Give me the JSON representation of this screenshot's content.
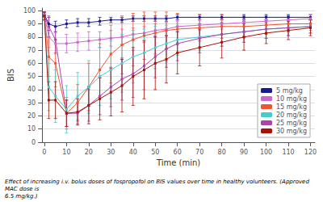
{
  "chart_data": {
    "type": "line",
    "title": "",
    "xlabel": "Time (min)",
    "ylabel": "BIS",
    "caption": "Effect of increasing i.v. bolus doses of fospropofol on BIS values over time in healthy volunteers. (Approved MAC dose is\n6.5 mg/kg.)",
    "xlim": [
      -1,
      122
    ],
    "ylim": [
      0,
      102
    ],
    "xticks": [
      0,
      10,
      20,
      30,
      40,
      50,
      60,
      70,
      80,
      90,
      100,
      110,
      120
    ],
    "yticks": [
      0,
      10,
      20,
      30,
      40,
      50,
      60,
      70,
      80,
      90,
      100
    ],
    "grid": true,
    "legend": "lower right",
    "marker": "square",
    "line_style": "solid",
    "series": [
      {
        "name": "5 mg/kg",
        "color": "#1a1a8c",
        "x": [
          0,
          2,
          5,
          10,
          15,
          20,
          25,
          30,
          35,
          40,
          45,
          50,
          55,
          60,
          70,
          80,
          90,
          100,
          110,
          120
        ],
        "values": [
          97,
          90,
          88,
          90,
          91,
          91,
          92,
          93,
          93,
          94,
          94,
          94,
          94,
          95,
          95,
          95,
          95,
          95,
          95,
          95
        ],
        "err": [
          2,
          5,
          4,
          3,
          3,
          3,
          3,
          2,
          2,
          2,
          2,
          2,
          2,
          2,
          2,
          2,
          2,
          2,
          2,
          2
        ]
      },
      {
        "name": "10 mg/kg",
        "color": "#cc66cc",
        "x": [
          0,
          2,
          5,
          10,
          15,
          20,
          25,
          30,
          35,
          40,
          45,
          50,
          55,
          60,
          70,
          80,
          90,
          100,
          110,
          120
        ],
        "values": [
          97,
          80,
          75,
          75,
          76,
          77,
          78,
          79,
          80,
          82,
          83,
          85,
          86,
          88,
          89,
          90,
          91,
          92,
          93,
          94
        ],
        "err": [
          2,
          8,
          8,
          7,
          7,
          7,
          6,
          6,
          6,
          5,
          5,
          5,
          5,
          4,
          4,
          4,
          3,
          3,
          3,
          3
        ]
      },
      {
        "name": "15 mg/kg",
        "color": "#ee5533",
        "x": [
          0,
          2,
          5,
          10,
          15,
          20,
          25,
          30,
          35,
          40,
          45,
          50,
          55,
          60,
          70,
          80,
          90,
          100,
          110,
          120
        ],
        "values": [
          96,
          65,
          60,
          22,
          30,
          42,
          55,
          67,
          74,
          78,
          81,
          83,
          85,
          86,
          87,
          88,
          88,
          89,
          90,
          90
        ],
        "err": [
          3,
          15,
          18,
          12,
          14,
          18,
          20,
          22,
          22,
          20,
          18,
          16,
          14,
          12,
          10,
          9,
          8,
          7,
          6,
          5
        ]
      },
      {
        "name": "20 mg/kg",
        "color": "#44cccc",
        "x": [
          0,
          2,
          5,
          10,
          15,
          20,
          25,
          30,
          35,
          40,
          45,
          50,
          55,
          60,
          70,
          80,
          90,
          100,
          110,
          120
        ],
        "values": [
          96,
          42,
          35,
          25,
          35,
          42,
          50,
          55,
          60,
          65,
          68,
          72,
          75,
          78,
          80,
          82,
          84,
          86,
          87,
          88
        ],
        "err": [
          3,
          18,
          20,
          18,
          18,
          20,
          22,
          22,
          22,
          20,
          18,
          16,
          14,
          12,
          10,
          9,
          8,
          7,
          6,
          5
        ]
      },
      {
        "name": "25 mg/kg",
        "color": "#aa44aa",
        "x": [
          0,
          2,
          5,
          10,
          15,
          20,
          25,
          30,
          35,
          40,
          45,
          50,
          55,
          60,
          70,
          80,
          90,
          100,
          110,
          120
        ],
        "values": [
          96,
          88,
          78,
          22,
          22,
          28,
          35,
          42,
          48,
          52,
          58,
          65,
          71,
          75,
          79,
          82,
          84,
          86,
          87,
          88
        ],
        "err": [
          3,
          8,
          10,
          10,
          8,
          12,
          14,
          15,
          16,
          18,
          18,
          16,
          14,
          13,
          11,
          9,
          8,
          7,
          6,
          5
        ]
      },
      {
        "name": "30 mg/kg",
        "color": "#aa1100",
        "x": [
          0,
          2,
          5,
          10,
          15,
          20,
          25,
          30,
          35,
          40,
          45,
          50,
          55,
          60,
          70,
          80,
          90,
          100,
          110,
          120
        ],
        "values": [
          96,
          32,
          32,
          22,
          23,
          28,
          33,
          38,
          43,
          50,
          55,
          60,
          63,
          68,
          72,
          76,
          80,
          83,
          85,
          87
        ],
        "err": [
          3,
          14,
          14,
          10,
          10,
          14,
          16,
          18,
          20,
          22,
          22,
          20,
          18,
          16,
          14,
          12,
          10,
          8,
          7,
          6
        ]
      }
    ]
  }
}
